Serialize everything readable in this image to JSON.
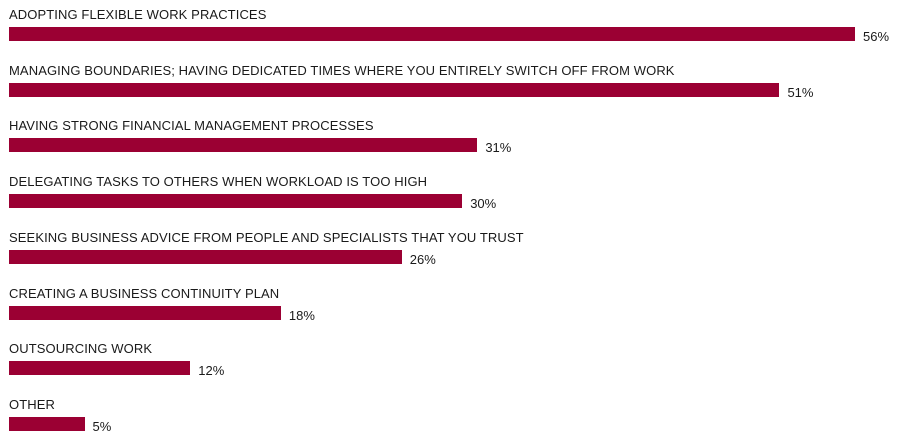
{
  "chart_data": {
    "type": "bar",
    "orientation": "horizontal",
    "categories": [
      "ADOPTING FLEXIBLE WORK PRACTICES",
      "MANAGING BOUNDARIES; HAVING DEDICATED TIMES WHERE YOU ENTIRELY SWITCH OFF FROM WORK",
      "HAVING STRONG FINANCIAL MANAGEMENT PROCESSES",
      "DELEGATING TASKS TO OTHERS WHEN WORKLOAD IS TOO HIGH",
      "SEEKING BUSINESS ADVICE FROM PEOPLE AND SPECIALISTS THAT YOU TRUST",
      "CREATING A BUSINESS CONTINUITY PLAN",
      "OUTSOURCING WORK",
      "OTHER"
    ],
    "values": [
      56,
      51,
      31,
      30,
      26,
      18,
      12,
      5
    ],
    "value_labels": [
      "56%",
      "51%",
      "31%",
      "30%",
      "26%",
      "18%",
      "12%",
      "5%"
    ],
    "unit": "%",
    "bar_color": "#9b0033",
    "grid": false,
    "legend": "none"
  }
}
